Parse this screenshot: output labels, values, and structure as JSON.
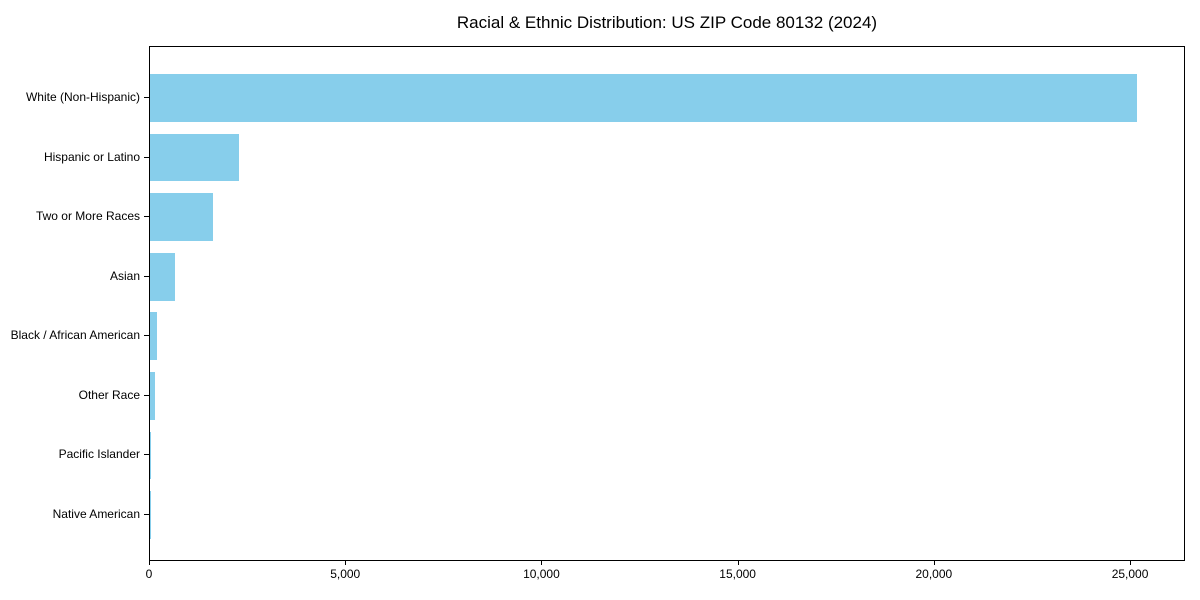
{
  "chart_data": {
    "type": "bar",
    "orientation": "horizontal",
    "title": "Racial & Ethnic Distribution: US ZIP Code 80132 (2024)",
    "categories": [
      "White (Non-Hispanic)",
      "Hispanic or Latino",
      "Two or More Races",
      "Asian",
      "Black / African American",
      "Other Race",
      "Pacific Islander",
      "Native American"
    ],
    "values": [
      25150,
      2270,
      1600,
      645,
      178,
      138,
      25,
      10
    ],
    "xlabel": "",
    "ylabel": "",
    "xlim": [
      0,
      26400
    ],
    "xticks": [
      {
        "value": 0,
        "label": "0"
      },
      {
        "value": 5000,
        "label": "5,000"
      },
      {
        "value": 10000,
        "label": "10,000"
      },
      {
        "value": 15000,
        "label": "15,000"
      },
      {
        "value": 20000,
        "label": "20,000"
      },
      {
        "value": 25000,
        "label": "25,000"
      }
    ],
    "grid": false,
    "legend": null,
    "bar_color": "#87ceeb",
    "axis_color": "#000000",
    "background_color": "#ffffff"
  }
}
